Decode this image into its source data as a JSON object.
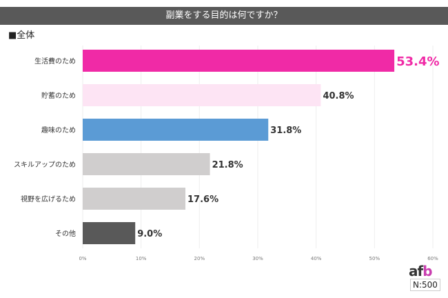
{
  "header": {
    "title": "副業をする目的は何ですか？",
    "subset": "■全体"
  },
  "logo": {
    "a": "af",
    "b": "b"
  },
  "sample": "N:500",
  "chart_data": {
    "type": "bar",
    "orientation": "horizontal",
    "title": "副業をする目的は何ですか？",
    "categories": [
      "生活費のため",
      "貯蓄のため",
      "趣味のため",
      "スキルアップのため",
      "視野を広げるため",
      "その他"
    ],
    "values": [
      53.4,
      40.8,
      31.8,
      21.8,
      17.6,
      9.0
    ],
    "value_labels": [
      "53.4%",
      "40.8%",
      "31.8%",
      "21.8%",
      "17.6%",
      "9.0%"
    ],
    "colors": [
      "#f02aa6",
      "#fde4f4",
      "#5b9bd5",
      "#d0cece",
      "#d0cece",
      "#595959"
    ],
    "xlim": [
      0,
      60
    ],
    "xticks": [
      "0%",
      "10%",
      "20%",
      "30%",
      "40%",
      "50%",
      "60%"
    ],
    "grid": true
  }
}
